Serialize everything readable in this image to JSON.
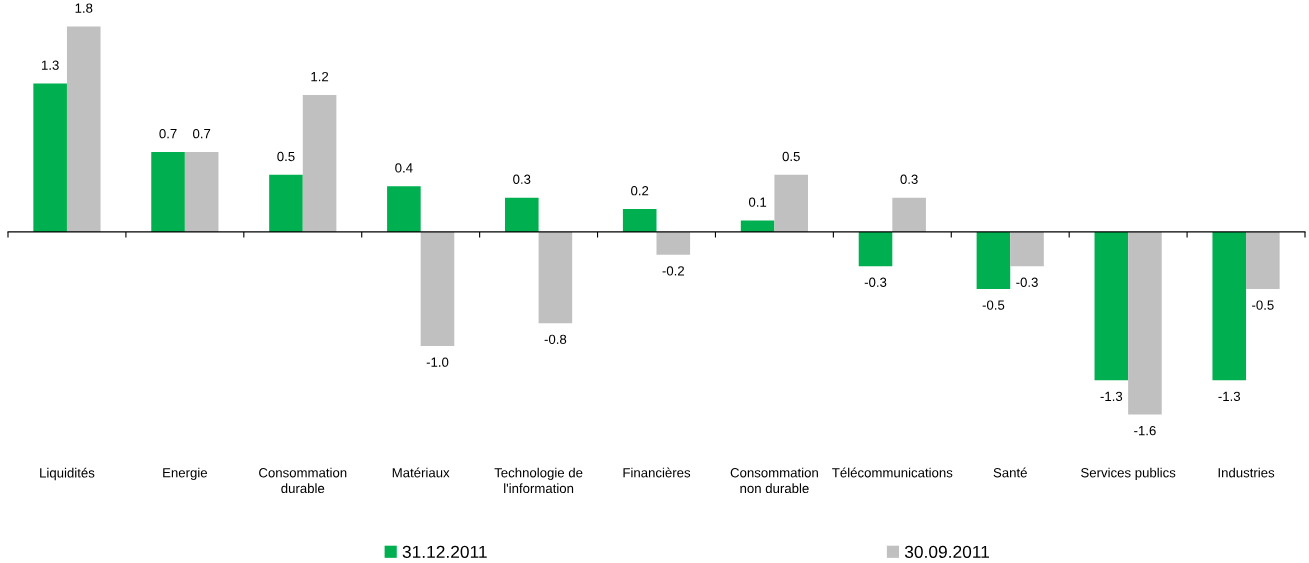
{
  "chart_data": {
    "type": "bar",
    "categories": [
      "Liquidités",
      "Energie",
      "Consommation durable",
      "Matériaux",
      "Technologie de l'information",
      "Financières",
      "Consommation non durable",
      "Télécommunications",
      "Santé",
      "Services publics",
      "Industries"
    ],
    "series": [
      {
        "name": "31.12.2011",
        "color": "#00b050",
        "values": [
          1.3,
          0.7,
          0.5,
          0.4,
          0.3,
          0.2,
          0.1,
          -0.3,
          -0.5,
          -1.3,
          -1.3
        ],
        "value_labels": [
          "1.3",
          "0.7",
          "0.5",
          "0.4",
          "0.3",
          "0.2",
          "0.1",
          "-0.3",
          "-0.5",
          "-1.3",
          "-1.3"
        ]
      },
      {
        "name": "30.09.2011",
        "color": "#c0c0c0",
        "values": [
          1.8,
          0.7,
          1.2,
          -1.0,
          -0.8,
          -0.2,
          0.5,
          0.3,
          -0.3,
          -1.6,
          -0.5
        ],
        "value_labels": [
          "1.8",
          "0.7",
          "1.2",
          "-1.0",
          "-0.8",
          "-0.2",
          "0.5",
          "0.3",
          "-0.3",
          "-1.6",
          "-0.5"
        ]
      }
    ],
    "legend": "bottom",
    "grid": false,
    "tick_labels": "x"
  }
}
